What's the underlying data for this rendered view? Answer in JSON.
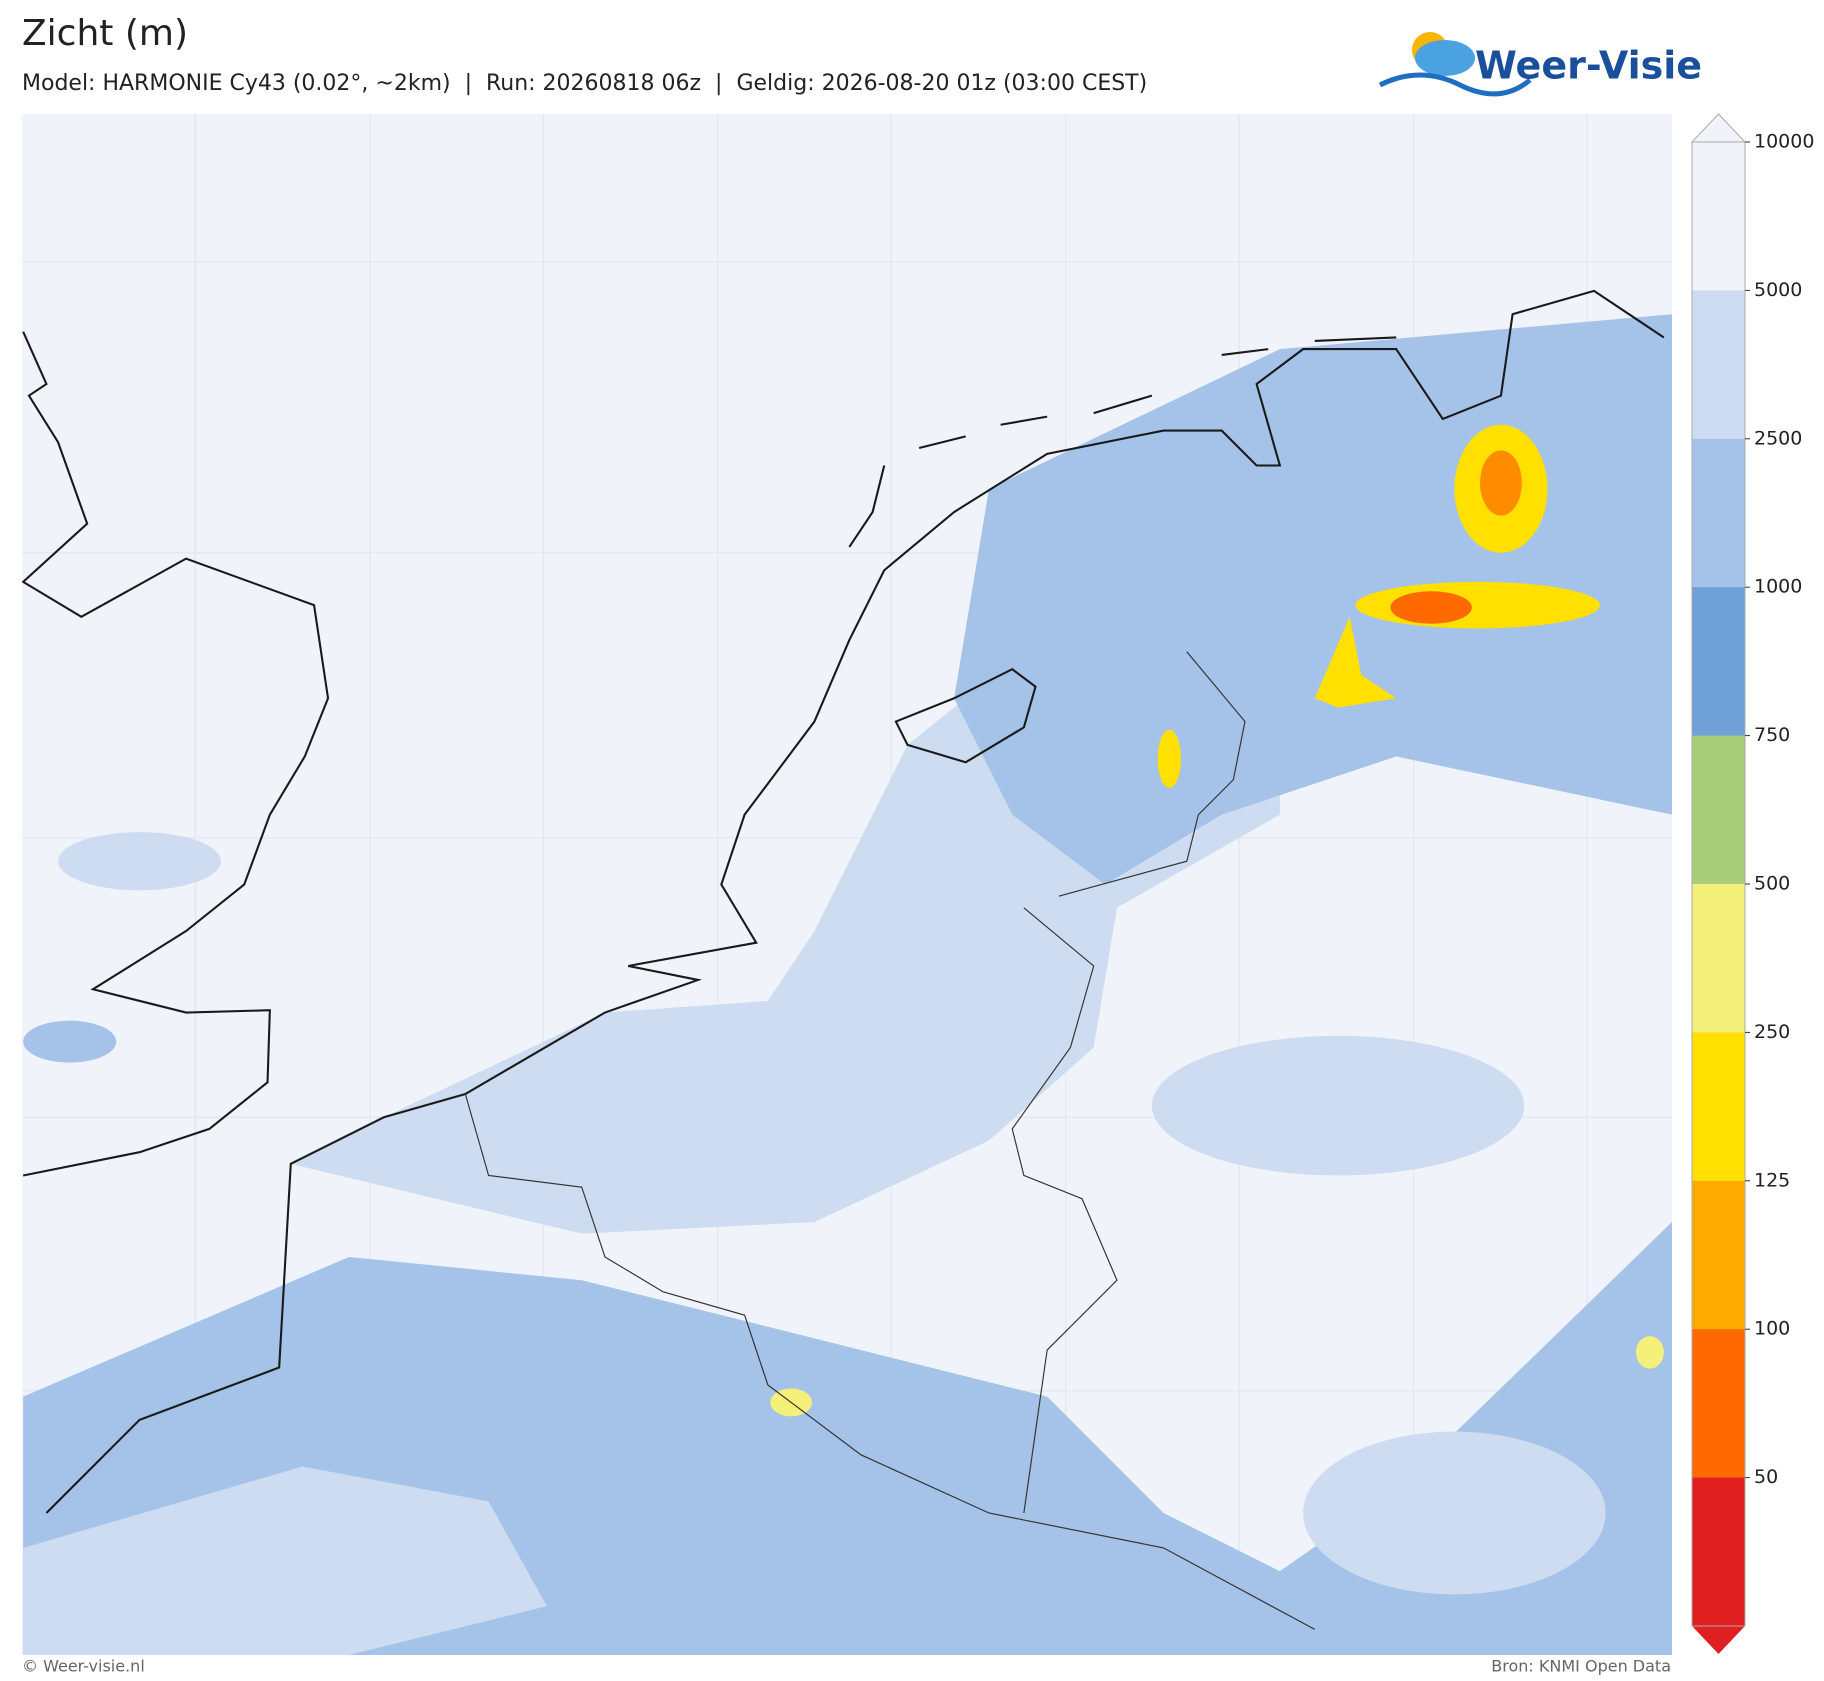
{
  "header": {
    "title": "Zicht (m)",
    "subtitle": "Model: HARMONIE Cy43 (0.02°, ~2km)  |  Run: 20260818 06z  |  Geldig: 2026-08-20 01z (03:00 CEST)"
  },
  "logo": {
    "text": "Weer-Visie"
  },
  "colorbar": {
    "labels": [
      "10000",
      "5000",
      "2500",
      "1000",
      "750",
      "500",
      "250",
      "125",
      "100",
      "50"
    ],
    "colors": [
      "#f0f4fa",
      "#cddcf0",
      "#a5c2e8",
      "#6fa0d8",
      "#a8cc78",
      "#f5f07a",
      "#ffe000",
      "#ffaa00",
      "#ff6a00",
      "#e02020"
    ]
  },
  "footer": {
    "left": "© Weer-visie.nl",
    "right": "Bron: KNMI Open Data"
  }
}
